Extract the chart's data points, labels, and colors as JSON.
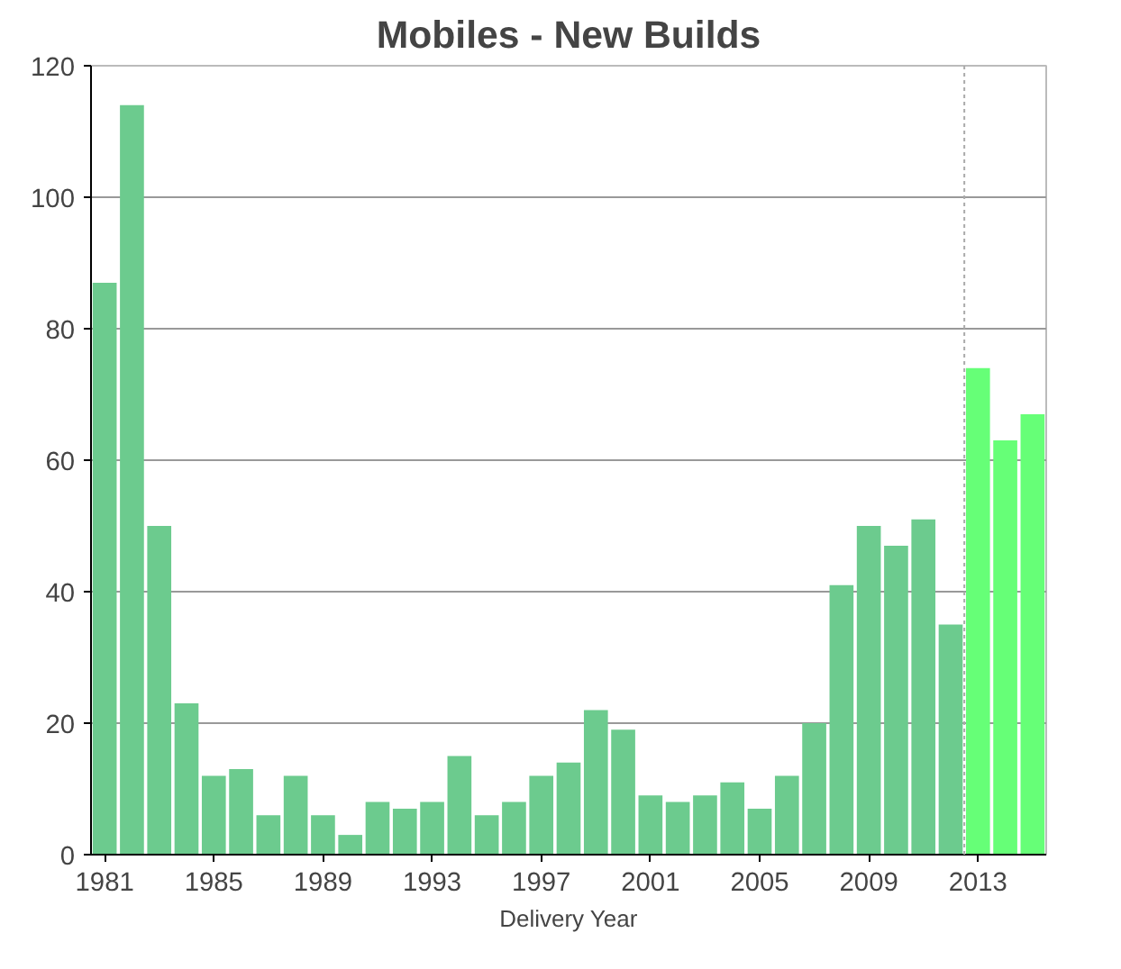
{
  "chart_data": {
    "type": "bar",
    "title": "Mobiles - New Builds",
    "xlabel": "Delivery Year",
    "x": [
      1981,
      1982,
      1983,
      1984,
      1985,
      1986,
      1987,
      1988,
      1989,
      1990,
      1991,
      1992,
      1993,
      1994,
      1995,
      1996,
      1997,
      1998,
      1999,
      2000,
      2001,
      2002,
      2003,
      2004,
      2005,
      2006,
      2007,
      2008,
      2009,
      2010,
      2011,
      2012,
      2013,
      2014,
      2015
    ],
    "values": [
      87,
      114,
      50,
      23,
      12,
      13,
      6,
      12,
      6,
      3,
      8,
      7,
      8,
      15,
      6,
      8,
      12,
      14,
      22,
      19,
      9,
      8,
      9,
      11,
      7,
      12,
      20,
      41,
      50,
      47,
      51,
      35,
      74,
      63,
      67
    ],
    "colors": [
      "#6ccb8e",
      "#6ccb8e",
      "#6ccb8e",
      "#6ccb8e",
      "#6ccb8e",
      "#6ccb8e",
      "#6ccb8e",
      "#6ccb8e",
      "#6ccb8e",
      "#6ccb8e",
      "#6ccb8e",
      "#6ccb8e",
      "#6ccb8e",
      "#6ccb8e",
      "#6ccb8e",
      "#6ccb8e",
      "#6ccb8e",
      "#6ccb8e",
      "#6ccb8e",
      "#6ccb8e",
      "#6ccb8e",
      "#6ccb8e",
      "#6ccb8e",
      "#6ccb8e",
      "#6ccb8e",
      "#6ccb8e",
      "#6ccb8e",
      "#6ccb8e",
      "#6ccb8e",
      "#6ccb8e",
      "#6ccb8e",
      "#6ccb8e",
      "#66ff77",
      "#66ff77",
      "#66ff77"
    ],
    "xlim": [
      1980.5,
      2015.5
    ],
    "xticks": [
      1981,
      1985,
      1989,
      1993,
      1997,
      2001,
      2005,
      2009,
      2013
    ],
    "ylim": [
      0,
      120
    ],
    "yticks": [
      0,
      20,
      40,
      60,
      80,
      100,
      120
    ],
    "ref_lines": [
      {
        "axis": "x",
        "value": 2012.5,
        "color": "#aaaaaa",
        "line_style": "dotted"
      }
    ],
    "grid": "y"
  }
}
